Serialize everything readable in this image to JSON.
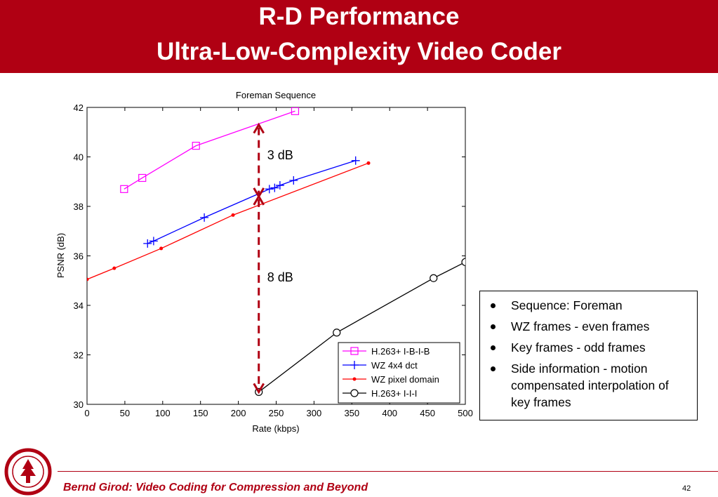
{
  "slide": {
    "title_line1": "R-D Performance",
    "title_line2": "Ultra-Low-Complexity Video Coder",
    "footer": "Bernd Girod: Video Coding for Compression and Beyond",
    "page_number": "42",
    "accent_color": "#b00013"
  },
  "chart_data": {
    "type": "line",
    "title": "Foreman Sequence",
    "xlabel": "Rate (kbps)",
    "ylabel": "PSNR (dB)",
    "xlim": [
      0,
      500
    ],
    "ylim": [
      30,
      42
    ],
    "xticks": [
      0,
      50,
      100,
      150,
      200,
      250,
      300,
      350,
      400,
      450,
      500
    ],
    "yticks": [
      30,
      32,
      34,
      36,
      38,
      40,
      42
    ],
    "legend_position": "bottom-right",
    "series": [
      {
        "name": "H.263+ I-B-I-B",
        "color": "#ff00ff",
        "marker": "square",
        "x": [
          49,
          73,
          144,
          275
        ],
        "y": [
          38.7,
          39.15,
          40.45,
          41.85
        ]
      },
      {
        "name": "WZ 4x4 dct",
        "color": "#0000ff",
        "marker": "plus",
        "x": [
          80,
          88,
          155,
          241,
          248,
          255,
          273,
          355
        ],
        "y": [
          36.5,
          36.6,
          37.55,
          38.7,
          38.75,
          38.85,
          39.05,
          39.85
        ]
      },
      {
        "name": "WZ pixel domain",
        "color": "#ff0000",
        "marker": "dot",
        "x": [
          0,
          36,
          98,
          193,
          372
        ],
        "y": [
          35.05,
          35.5,
          36.3,
          37.65,
          39.75
        ]
      },
      {
        "name": "H.263+ I-I-I",
        "color": "#000000",
        "marker": "circle",
        "x": [
          227,
          330,
          458,
          500
        ],
        "y": [
          30.5,
          32.9,
          35.1,
          35.75
        ]
      }
    ],
    "annotations": [
      {
        "text": "3 dB",
        "x": 227,
        "y_from": 38.4,
        "y_to": 41.3
      },
      {
        "text": "8 dB",
        "x": 227,
        "y_from": 30.5,
        "y_to": 38.4
      }
    ]
  },
  "bullets": [
    "Sequence: Foreman",
    "WZ frames - even frames",
    "Key frames - odd frames",
    "Side information - motion compensated interpolation of key frames"
  ]
}
